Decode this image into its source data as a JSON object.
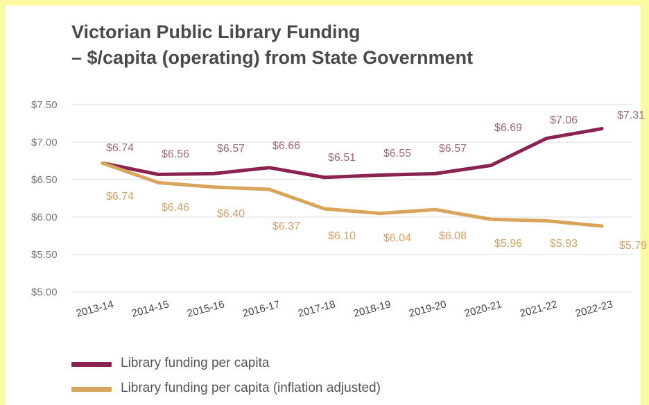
{
  "chart_data": {
    "type": "line",
    "title_lines": [
      "Victorian Public Library Funding",
      "– $/capita (operating) from State Government"
    ],
    "categories": [
      "2013-14",
      "2014-15",
      "2015-16",
      "2016-17",
      "2017-18",
      "2018-19",
      "2019-20",
      "2020-21",
      "2021-22",
      "2022-23"
    ],
    "y_ticks": [
      "$7.50",
      "$7.00",
      "$6.50",
      "$6.00",
      "$5.50",
      "$5.00"
    ],
    "ylim": [
      5.0,
      7.5
    ],
    "grid": true,
    "legend_position": "bottom-left",
    "series": [
      {
        "name": "Library funding per capita",
        "color": "#8b2351",
        "label_color": "#a06880",
        "values": [
          6.74,
          6.56,
          6.57,
          6.66,
          6.51,
          6.55,
          6.57,
          6.69,
          7.06,
          7.31
        ],
        "plot_values": [
          6.72,
          6.57,
          6.58,
          6.66,
          6.53,
          6.56,
          6.58,
          6.69,
          7.05,
          7.18
        ],
        "labels": [
          "$6.74",
          "$6.56",
          "$6.57",
          "$6.66",
          "$6.51",
          "$6.55",
          "$6.57",
          "$6.69",
          "$7.06",
          "$7.31"
        ]
      },
      {
        "name": "Library funding per capita (inflation adjusted)",
        "color": "#d8a55a",
        "label_color": "#d6a062",
        "values": [
          6.74,
          6.46,
          6.4,
          6.37,
          6.1,
          6.04,
          6.08,
          5.96,
          5.93,
          5.79
        ],
        "plot_values": [
          6.72,
          6.46,
          6.4,
          6.37,
          6.11,
          6.05,
          6.1,
          5.97,
          5.95,
          5.88
        ],
        "labels": [
          "$6.74",
          "$6.46",
          "$6.40",
          "$6.37",
          "$6.10",
          "$6.04",
          "$6.08",
          "$5.96",
          "$5.93",
          "$5.79"
        ]
      }
    ]
  }
}
